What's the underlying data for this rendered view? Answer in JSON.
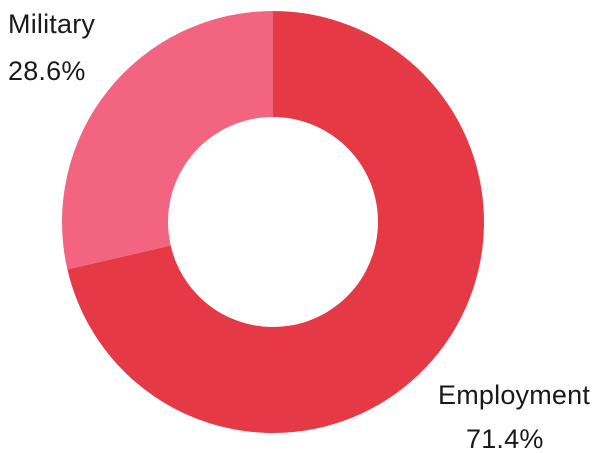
{
  "chart_data": {
    "type": "pie",
    "variant": "donut",
    "slices": [
      {
        "label": "Employment",
        "value": 71.4,
        "value_label": "71.4%",
        "color": "#e63946"
      },
      {
        "label": "Military",
        "value": 28.6,
        "value_label": "28.6%",
        "color": "#f2647f"
      }
    ],
    "title": "",
    "legend": "none"
  }
}
